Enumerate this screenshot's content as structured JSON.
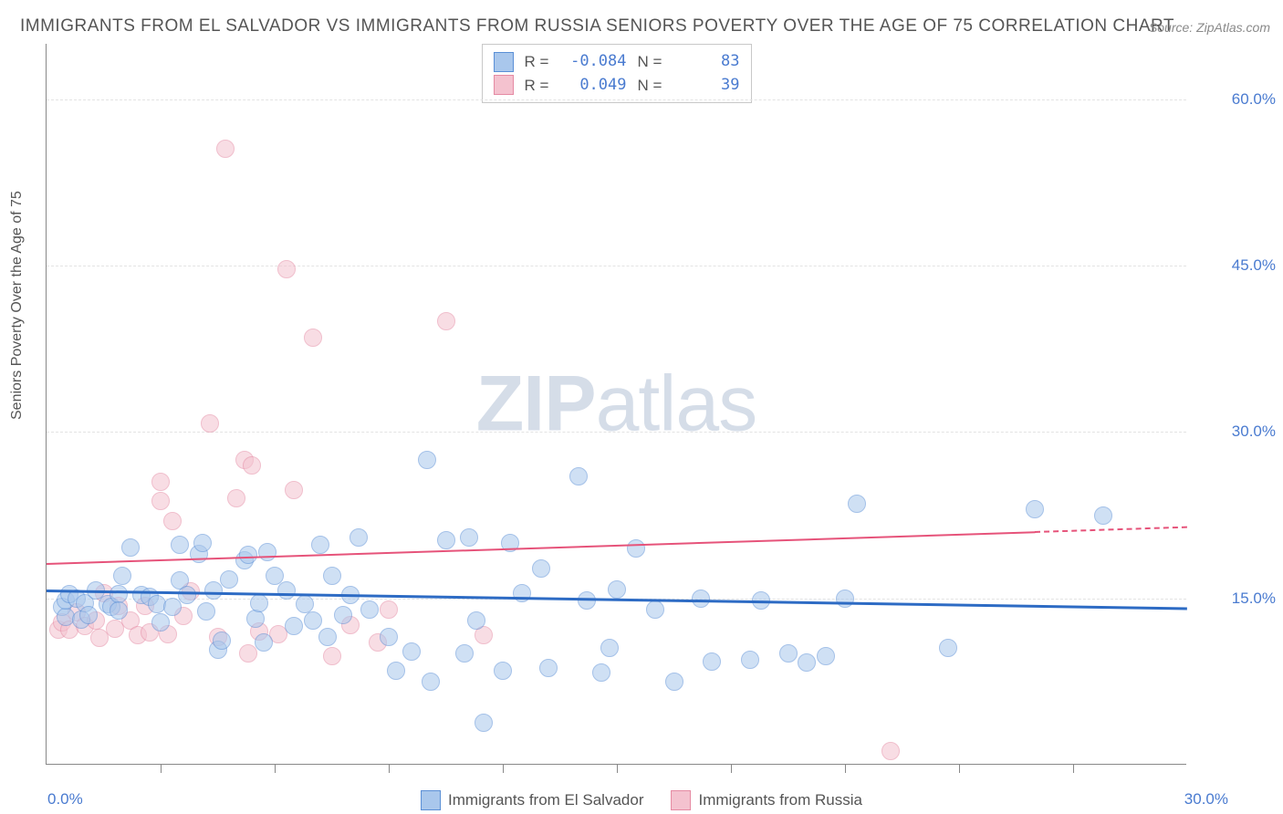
{
  "title": "IMMIGRANTS FROM EL SALVADOR VS IMMIGRANTS FROM RUSSIA SENIORS POVERTY OVER THE AGE OF 75 CORRELATION CHART",
  "source_label": "Source: ",
  "source_value": "ZipAtlas.com",
  "ylabel": "Seniors Poverty Over the Age of 75",
  "watermark_bold": "ZIP",
  "watermark_rest": "atlas",
  "chart": {
    "type": "scatter",
    "background_color": "#ffffff",
    "grid_color": "#e3e3e3",
    "axis_color": "#888888",
    "text_color": "#555555",
    "xlim": [
      0.0,
      30.0
    ],
    "ylim": [
      0.0,
      65.0
    ],
    "ytick_values": [
      15.0,
      30.0,
      45.0,
      60.0
    ],
    "ytick_labels": [
      "15.0%",
      "30.0%",
      "45.0%",
      "60.0%"
    ],
    "xtick_labels": [
      "0.0%",
      "30.0%"
    ],
    "x_minor_ticks": [
      3,
      6,
      9,
      12,
      15,
      18,
      21,
      24,
      27
    ],
    "ytick_color": "#4a7bd0",
    "marker_radius": 10,
    "marker_opacity": 0.55,
    "series": [
      {
        "name": "Immigrants from El Salvador",
        "fill": "#a9c7ec",
        "stroke": "#5a8fd6",
        "R": "-0.084",
        "N": "83",
        "trend": {
          "x1": 0,
          "y1": 15.8,
          "x2": 30,
          "y2": 14.2,
          "color": "#2d6bc4",
          "width": 2.5,
          "dash_after_x": null
        },
        "points": [
          [
            0.4,
            14.2
          ],
          [
            0.5,
            13.3
          ],
          [
            0.5,
            14.8
          ],
          [
            0.6,
            15.4
          ],
          [
            0.9,
            13.1
          ],
          [
            0.8,
            15.0
          ],
          [
            1.0,
            14.6
          ],
          [
            1.3,
            15.7
          ],
          [
            1.1,
            13.5
          ],
          [
            1.6,
            14.5
          ],
          [
            1.7,
            14.2
          ],
          [
            1.9,
            15.4
          ],
          [
            1.9,
            13.9
          ],
          [
            2.5,
            15.3
          ],
          [
            2.7,
            15.1
          ],
          [
            2.0,
            17.0
          ],
          [
            2.9,
            14.5
          ],
          [
            2.2,
            19.6
          ],
          [
            3.0,
            12.8
          ],
          [
            3.3,
            14.2
          ],
          [
            3.5,
            16.6
          ],
          [
            3.5,
            19.8
          ],
          [
            3.7,
            15.3
          ],
          [
            4.0,
            19.0
          ],
          [
            4.1,
            20.0
          ],
          [
            4.2,
            13.8
          ],
          [
            4.4,
            15.7
          ],
          [
            4.5,
            10.4
          ],
          [
            4.6,
            11.2
          ],
          [
            4.8,
            16.7
          ],
          [
            5.2,
            18.4
          ],
          [
            5.3,
            18.9
          ],
          [
            5.5,
            13.2
          ],
          [
            5.6,
            14.6
          ],
          [
            5.7,
            11.0
          ],
          [
            5.8,
            19.2
          ],
          [
            6.0,
            17.0
          ],
          [
            6.3,
            15.7
          ],
          [
            6.5,
            12.5
          ],
          [
            6.8,
            14.5
          ],
          [
            7.0,
            13.0
          ],
          [
            7.2,
            19.8
          ],
          [
            7.4,
            11.5
          ],
          [
            7.5,
            17.0
          ],
          [
            7.8,
            13.5
          ],
          [
            8.0,
            15.3
          ],
          [
            8.2,
            20.5
          ],
          [
            8.5,
            14.0
          ],
          [
            9.0,
            11.5
          ],
          [
            9.2,
            8.5
          ],
          [
            9.6,
            10.2
          ],
          [
            10.0,
            27.5
          ],
          [
            10.1,
            7.5
          ],
          [
            10.5,
            20.2
          ],
          [
            11.0,
            10.0
          ],
          [
            11.1,
            20.5
          ],
          [
            11.3,
            13.0
          ],
          [
            11.5,
            3.8
          ],
          [
            12.0,
            8.5
          ],
          [
            12.2,
            20.0
          ],
          [
            12.5,
            15.5
          ],
          [
            13.0,
            17.7
          ],
          [
            13.2,
            8.7
          ],
          [
            14.0,
            26.0
          ],
          [
            14.2,
            14.8
          ],
          [
            14.6,
            8.3
          ],
          [
            14.8,
            10.5
          ],
          [
            15.0,
            15.8
          ],
          [
            15.5,
            19.5
          ],
          [
            16.0,
            14.0
          ],
          [
            16.5,
            7.5
          ],
          [
            17.2,
            15.0
          ],
          [
            17.5,
            9.3
          ],
          [
            18.5,
            9.5
          ],
          [
            18.8,
            14.8
          ],
          [
            19.5,
            10.0
          ],
          [
            20.0,
            9.2
          ],
          [
            21.0,
            15.0
          ],
          [
            21.3,
            23.5
          ],
          [
            23.7,
            10.5
          ],
          [
            26.0,
            23.0
          ],
          [
            27.8,
            22.5
          ],
          [
            20.5,
            9.8
          ]
        ]
      },
      {
        "name": "Immigrants from Russia",
        "fill": "#f4c2cf",
        "stroke": "#e58aa3",
        "R": "0.049",
        "N": "39",
        "trend": {
          "x1": 0,
          "y1": 18.2,
          "x2": 30,
          "y2": 21.5,
          "color": "#e6537a",
          "width": 2,
          "dash_after_x": 26
        },
        "points": [
          [
            0.3,
            12.2
          ],
          [
            0.4,
            12.8
          ],
          [
            0.6,
            12.2
          ],
          [
            0.8,
            13.7
          ],
          [
            1.0,
            12.5
          ],
          [
            1.3,
            13.0
          ],
          [
            1.4,
            11.4
          ],
          [
            1.5,
            15.5
          ],
          [
            1.8,
            12.3
          ],
          [
            1.9,
            14.3
          ],
          [
            2.2,
            13.0
          ],
          [
            2.4,
            11.7
          ],
          [
            2.6,
            14.3
          ],
          [
            2.7,
            11.9
          ],
          [
            3.0,
            23.8
          ],
          [
            3.0,
            25.5
          ],
          [
            3.3,
            22.0
          ],
          [
            3.2,
            11.8
          ],
          [
            3.6,
            13.4
          ],
          [
            3.8,
            15.6
          ],
          [
            4.3,
            30.8
          ],
          [
            4.5,
            11.5
          ],
          [
            4.7,
            55.5
          ],
          [
            5.0,
            24.0
          ],
          [
            5.2,
            27.5
          ],
          [
            5.3,
            10.0
          ],
          [
            5.4,
            27.0
          ],
          [
            5.6,
            12.0
          ],
          [
            6.1,
            11.8
          ],
          [
            6.3,
            44.7
          ],
          [
            6.5,
            24.8
          ],
          [
            7.0,
            38.5
          ],
          [
            7.5,
            9.8
          ],
          [
            8.0,
            12.6
          ],
          [
            8.7,
            11.0
          ],
          [
            9.0,
            14.0
          ],
          [
            10.5,
            40.0
          ],
          [
            11.5,
            11.7
          ],
          [
            22.2,
            1.2
          ]
        ]
      }
    ]
  },
  "legend_top": {
    "R_label": "R =",
    "N_label": "N ="
  },
  "legend_bottom": [
    {
      "label": "Immigrants from El Salvador",
      "fill": "#a9c7ec",
      "stroke": "#5a8fd6"
    },
    {
      "label": "Immigrants from Russia",
      "fill": "#f4c2cf",
      "stroke": "#e58aa3"
    }
  ]
}
